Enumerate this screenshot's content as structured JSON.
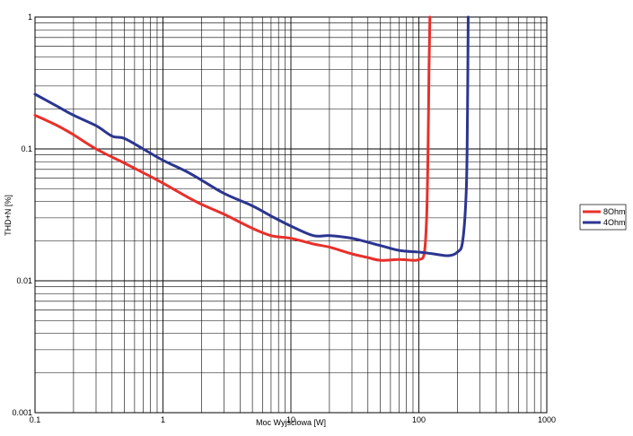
{
  "chart_data": {
    "type": "line",
    "title": "",
    "xlabel": "Moc Wyjściowa [W]",
    "ylabel": "THD+N [%]",
    "xscale": "log",
    "yscale": "log",
    "xlim": [
      0.1,
      1000
    ],
    "ylim": [
      0.001,
      1
    ],
    "grid": true,
    "legend_placement": "right",
    "x_tick_labels": [
      {
        "value": 0.1,
        "label": "0.1"
      },
      {
        "value": 1,
        "label": "1"
      },
      {
        "value": 10,
        "label": "10"
      },
      {
        "value": 100,
        "label": "100"
      },
      {
        "value": 1000,
        "label": "1000"
      }
    ],
    "y_tick_labels": [
      {
        "value": 1,
        "label": "1"
      },
      {
        "value": 0.1,
        "label": "0.1"
      },
      {
        "value": 0.01,
        "label": "0.01"
      },
      {
        "value": 0.001,
        "label": "0.001"
      }
    ],
    "series": [
      {
        "name": "8Ohm",
        "color": "#e8302a",
        "points": [
          [
            0.1,
            0.18
          ],
          [
            0.15,
            0.15
          ],
          [
            0.2,
            0.128
          ],
          [
            0.3,
            0.1
          ],
          [
            0.5,
            0.078
          ],
          [
            0.7,
            0.066
          ],
          [
            1,
            0.055
          ],
          [
            1.5,
            0.044
          ],
          [
            2,
            0.038
          ],
          [
            3,
            0.032
          ],
          [
            5,
            0.025
          ],
          [
            7,
            0.022
          ],
          [
            10,
            0.021
          ],
          [
            15,
            0.019
          ],
          [
            20,
            0.018
          ],
          [
            30,
            0.016
          ],
          [
            40,
            0.015
          ],
          [
            50,
            0.0143
          ],
          [
            70,
            0.0145
          ],
          [
            90,
            0.0143
          ],
          [
            100,
            0.0145
          ],
          [
            110,
            0.016
          ],
          [
            115,
            0.03
          ],
          [
            118,
            0.1
          ],
          [
            120,
            0.4
          ],
          [
            122,
            1
          ]
        ]
      },
      {
        "name": "4Ohm",
        "color": "#2b3590",
        "points": [
          [
            0.1,
            0.26
          ],
          [
            0.15,
            0.21
          ],
          [
            0.2,
            0.18
          ],
          [
            0.3,
            0.15
          ],
          [
            0.4,
            0.125
          ],
          [
            0.5,
            0.12
          ],
          [
            0.7,
            0.1
          ],
          [
            1,
            0.082
          ],
          [
            1.5,
            0.068
          ],
          [
            2,
            0.058
          ],
          [
            3,
            0.046
          ],
          [
            5,
            0.037
          ],
          [
            7,
            0.031
          ],
          [
            10,
            0.026
          ],
          [
            15,
            0.022
          ],
          [
            20,
            0.022
          ],
          [
            30,
            0.021
          ],
          [
            50,
            0.0185
          ],
          [
            70,
            0.017
          ],
          [
            100,
            0.0165
          ],
          [
            130,
            0.016
          ],
          [
            170,
            0.0155
          ],
          [
            200,
            0.0165
          ],
          [
            220,
            0.02
          ],
          [
            235,
            0.05
          ],
          [
            240,
            0.2
          ],
          [
            243,
            1
          ]
        ]
      }
    ]
  }
}
